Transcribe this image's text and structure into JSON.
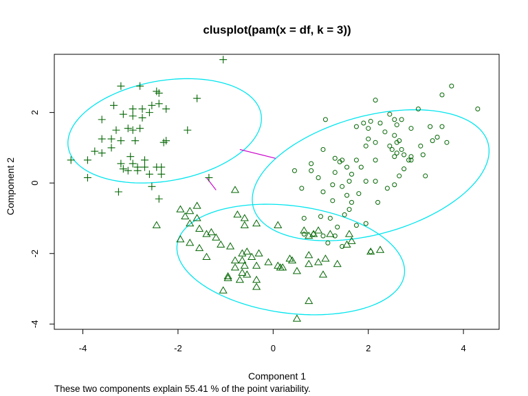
{
  "chart_data": {
    "type": "scatter",
    "title": "clusplot(pam(x = df, k = 3))",
    "subtitle": "These two components explain 55.41 % of the point variability.",
    "xlabel": "Component 1",
    "ylabel": "Component 2",
    "xlim": [
      -4.6,
      4.75
    ],
    "ylim": [
      -4.15,
      3.65
    ],
    "xticks": [
      -4,
      -2,
      0,
      2,
      4
    ],
    "yticks": [
      -4,
      -2,
      0,
      2
    ],
    "grid": false,
    "ellipse_color": "#00e5ee",
    "point_color": "#006400",
    "link_color": "#cc00cc",
    "series": [
      {
        "marker": "plus",
        "points": [
          [
            -1.05,
            3.5
          ],
          [
            -3.2,
            2.75
          ],
          [
            -2.8,
            2.75
          ],
          [
            -2.45,
            2.6
          ],
          [
            -2.4,
            2.55
          ],
          [
            -3.35,
            2.2
          ],
          [
            -2.55,
            2.2
          ],
          [
            -2.4,
            2.25
          ],
          [
            -2.75,
            2.1
          ],
          [
            -2.95,
            2.1
          ],
          [
            -2.6,
            2.0
          ],
          [
            -2.25,
            2.1
          ],
          [
            -2.95,
            1.9
          ],
          [
            -3.15,
            1.95
          ],
          [
            -2.75,
            1.85
          ],
          [
            -3.6,
            1.8
          ],
          [
            -1.6,
            2.4
          ],
          [
            -2.8,
            1.55
          ],
          [
            -2.95,
            1.5
          ],
          [
            -3.05,
            1.55
          ],
          [
            -3.3,
            1.5
          ],
          [
            -1.8,
            1.5
          ],
          [
            -3.6,
            1.25
          ],
          [
            -3.4,
            1.25
          ],
          [
            -3.2,
            1.2
          ],
          [
            -2.9,
            1.2
          ],
          [
            -2.25,
            1.2
          ],
          [
            -2.3,
            1.15
          ],
          [
            -3.4,
            1.0
          ],
          [
            -3.6,
            0.85
          ],
          [
            -3.75,
            0.9
          ],
          [
            -3.0,
            0.75
          ],
          [
            -3.9,
            0.65
          ],
          [
            -4.25,
            0.65
          ],
          [
            -3.2,
            0.55
          ],
          [
            -2.95,
            0.55
          ],
          [
            -2.7,
            0.65
          ],
          [
            -2.85,
            0.45
          ],
          [
            -2.7,
            0.45
          ],
          [
            -3.15,
            0.4
          ],
          [
            -2.45,
            0.45
          ],
          [
            -2.35,
            0.45
          ],
          [
            -3.05,
            0.35
          ],
          [
            -2.85,
            0.35
          ],
          [
            -2.6,
            0.25
          ],
          [
            -2.35,
            0.25
          ],
          [
            -3.9,
            0.15
          ],
          [
            -2.55,
            -0.1
          ],
          [
            -3.25,
            -0.25
          ],
          [
            -2.4,
            -0.45
          ],
          [
            -1.35,
            0.15
          ]
        ]
      },
      {
        "marker": "circle",
        "points": [
          [
            3.75,
            2.75
          ],
          [
            3.55,
            2.5
          ],
          [
            4.3,
            2.1
          ],
          [
            2.15,
            2.35
          ],
          [
            3.05,
            2.1
          ],
          [
            2.45,
            1.95
          ],
          [
            1.1,
            1.8
          ],
          [
            2.55,
            1.8
          ],
          [
            2.7,
            1.8
          ],
          [
            1.9,
            1.7
          ],
          [
            2.05,
            1.75
          ],
          [
            2.25,
            1.7
          ],
          [
            2.6,
            1.65
          ],
          [
            3.3,
            1.6
          ],
          [
            3.55,
            1.6
          ],
          [
            1.75,
            1.6
          ],
          [
            2.0,
            1.55
          ],
          [
            2.9,
            1.55
          ],
          [
            2.35,
            1.45
          ],
          [
            2.55,
            1.35
          ],
          [
            2.65,
            1.2
          ],
          [
            3.45,
            1.3
          ],
          [
            2.0,
            1.25
          ],
          [
            2.6,
            1.15
          ],
          [
            3.35,
            1.2
          ],
          [
            3.65,
            1.15
          ],
          [
            2.15,
            1.15
          ],
          [
            1.95,
            1.05
          ],
          [
            2.45,
            1.05
          ],
          [
            3.1,
            1.05
          ],
          [
            2.5,
            0.95
          ],
          [
            1.05,
            0.95
          ],
          [
            2.7,
            0.95
          ],
          [
            2.6,
            0.85
          ],
          [
            2.75,
            0.8
          ],
          [
            3.15,
            0.8
          ],
          [
            2.55,
            0.75
          ],
          [
            2.9,
            0.75
          ],
          [
            1.3,
            0.7
          ],
          [
            2.85,
            0.65
          ],
          [
            2.9,
            0.65
          ],
          [
            1.75,
            0.65
          ],
          [
            2.15,
            0.65
          ],
          [
            1.4,
            0.6
          ],
          [
            1.45,
            0.65
          ],
          [
            0.8,
            0.55
          ],
          [
            1.55,
            0.45
          ],
          [
            1.85,
            0.45
          ],
          [
            0.8,
            0.35
          ],
          [
            0.45,
            0.35
          ],
          [
            2.75,
            0.4
          ],
          [
            1.3,
            0.3
          ],
          [
            1.65,
            0.25
          ],
          [
            0.95,
            0.15
          ],
          [
            2.65,
            0.2
          ],
          [
            3.2,
            0.2
          ],
          [
            1.6,
            0.05
          ],
          [
            1.95,
            0.05
          ],
          [
            2.15,
            0.05
          ],
          [
            1.25,
            -0.05
          ],
          [
            1.45,
            -0.1
          ],
          [
            2.55,
            -0.05
          ],
          [
            0.6,
            -0.15
          ],
          [
            1.05,
            -0.25
          ],
          [
            2.4,
            -0.15
          ],
          [
            1.8,
            -0.3
          ],
          [
            1.55,
            -0.35
          ],
          [
            1.25,
            -0.5
          ],
          [
            2.2,
            -0.55
          ],
          [
            1.65,
            -0.55
          ],
          [
            1.6,
            -0.75
          ],
          [
            1.5,
            -0.9
          ],
          [
            1.0,
            -0.95
          ],
          [
            1.2,
            -1.0
          ],
          [
            0.65,
            -1.0
          ],
          [
            1.35,
            -1.25
          ],
          [
            0.65,
            -1.45
          ],
          [
            0.85,
            -1.45
          ],
          [
            1.05,
            -1.5
          ],
          [
            1.3,
            -1.5
          ],
          [
            1.75,
            -1.2
          ],
          [
            1.95,
            -1.15
          ],
          [
            1.15,
            -1.7
          ],
          [
            1.45,
            -1.8
          ],
          [
            2.05,
            -1.95
          ]
        ]
      },
      {
        "marker": "triangle",
        "points": [
          [
            -0.8,
            -0.2
          ],
          [
            -1.6,
            -0.65
          ],
          [
            -1.95,
            -0.75
          ],
          [
            -1.75,
            -0.8
          ],
          [
            -1.85,
            -0.95
          ],
          [
            -1.6,
            -1.0
          ],
          [
            -1.75,
            -1.15
          ],
          [
            -2.45,
            -1.2
          ],
          [
            -1.55,
            -1.3
          ],
          [
            -1.3,
            -1.4
          ],
          [
            -1.4,
            -1.45
          ],
          [
            -1.2,
            -1.55
          ],
          [
            -1.95,
            -1.6
          ],
          [
            -1.75,
            -1.7
          ],
          [
            -1.55,
            -1.85
          ],
          [
            -1.1,
            -1.75
          ],
          [
            -0.75,
            -0.9
          ],
          [
            -0.6,
            -1.0
          ],
          [
            -0.35,
            -1.15
          ],
          [
            0.1,
            -1.2
          ],
          [
            -0.6,
            -1.2
          ],
          [
            -0.9,
            -1.8
          ],
          [
            -0.55,
            -1.95
          ],
          [
            -0.65,
            -2.0
          ],
          [
            -0.3,
            -2.0
          ],
          [
            -0.45,
            -2.1
          ],
          [
            -0.65,
            -2.2
          ],
          [
            -0.8,
            -2.2
          ],
          [
            -1.4,
            -2.1
          ],
          [
            -0.6,
            -2.35
          ],
          [
            -0.35,
            -2.35
          ],
          [
            0.1,
            -2.35
          ],
          [
            0.15,
            -2.4
          ],
          [
            0.4,
            -2.2
          ],
          [
            0.35,
            -2.15
          ],
          [
            0.75,
            -2.05
          ],
          [
            0.75,
            -2.3
          ],
          [
            1.1,
            -2.15
          ],
          [
            0.5,
            -2.5
          ],
          [
            -0.65,
            -2.55
          ],
          [
            -0.95,
            -2.7
          ],
          [
            -0.7,
            -2.75
          ],
          [
            -0.35,
            -2.75
          ],
          [
            -0.55,
            -2.6
          ],
          [
            -0.8,
            -2.4
          ],
          [
            1.05,
            -2.6
          ],
          [
            1.35,
            -2.3
          ],
          [
            1.55,
            -1.75
          ],
          [
            1.6,
            -1.45
          ],
          [
            1.2,
            -1.45
          ],
          [
            0.95,
            -1.35
          ],
          [
            1.65,
            -1.65
          ],
          [
            2.05,
            -1.95
          ],
          [
            2.25,
            -1.9
          ],
          [
            0.85,
            -1.45
          ],
          [
            0.75,
            -1.5
          ],
          [
            -0.95,
            -2.65
          ],
          [
            -1.05,
            -3.05
          ],
          [
            -0.35,
            -2.95
          ],
          [
            0.75,
            -3.35
          ],
          [
            0.5,
            -3.85
          ],
          [
            0.2,
            -2.4
          ],
          [
            -0.1,
            -2.25
          ],
          [
            0.95,
            -2.25
          ],
          [
            0.65,
            -1.35
          ]
        ]
      }
    ],
    "ellipses": [
      {
        "cx": -2.28,
        "cy": 1.48,
        "rx": 2.09,
        "ry": 1.4,
        "angle_deg": 18.0
      },
      {
        "cx": 2.05,
        "cy": 0.22,
        "rx": 2.65,
        "ry": 1.62,
        "angle_deg": 25.7
      },
      {
        "cx": 0.37,
        "cy": -2.17,
        "rx": 2.43,
        "ry": 1.51,
        "angle_deg": -12.8
      }
    ],
    "links": [
      {
        "x": [
          -0.7,
          0.05
        ],
        "y": [
          0.95,
          0.7
        ]
      },
      {
        "x": [
          -1.4,
          -1.2
        ],
        "y": [
          0.15,
          -0.2
        ]
      }
    ]
  }
}
